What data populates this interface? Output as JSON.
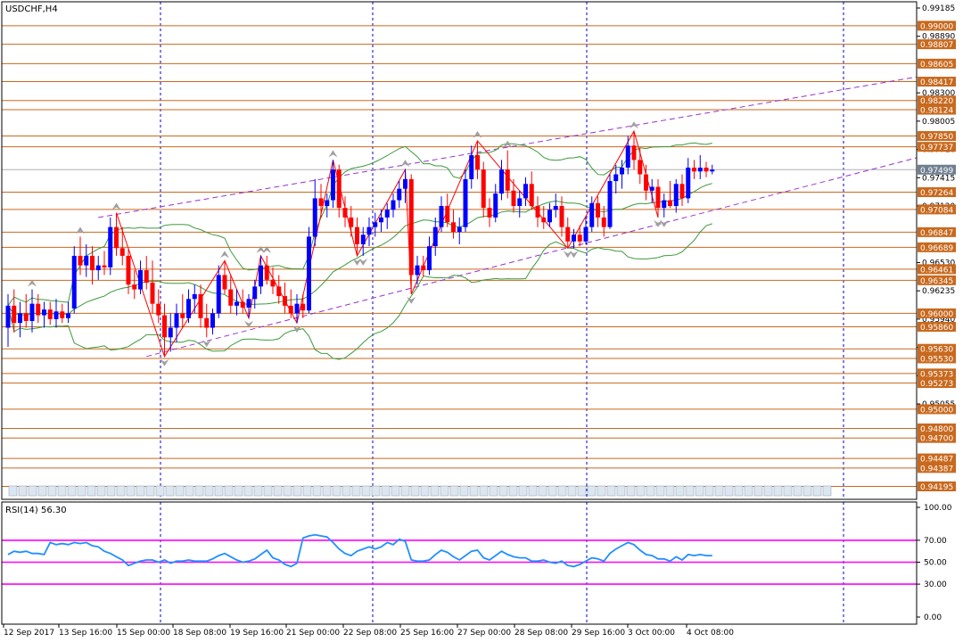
{
  "header": {
    "symbol_label": "USDCHF,H4"
  },
  "rsi": {
    "label": "RSI(14) 56.30",
    "ticks": [
      "100.00",
      "70.00",
      "50.00",
      "30.00",
      "0.00"
    ]
  },
  "colors": {
    "bull": "#0000ff",
    "bear": "#ff0000",
    "level": "#c8691e",
    "channel": "#9932cc",
    "bollinger": "#3c9a3c",
    "zigzag": "#ff0000",
    "rsi_line": "#1e90ff",
    "rsi_level": "#ff00ff",
    "grid": "#0000cd",
    "price_box": "#708090"
  },
  "chart_data": [
    {
      "type": "candlestick",
      "title": "USDCHF,H4",
      "ylim": [
        0.9406,
        0.9925
      ],
      "x_ticks": [
        "12 Sep 2017",
        "13 Sep 16:00",
        "15 Sep 00:00",
        "18 Sep 08:00",
        "19 Sep 16:00",
        "21 Sep 00:00",
        "22 Sep 08:00",
        "25 Sep 16:00",
        "27 Sep 00:00",
        "28 Sep 08:00",
        "29 Sep 16:00",
        "3 Oct 00:00",
        "4 Oct 08:00"
      ],
      "y_ticks": [
        "0.99185",
        "0.98890",
        "0.98300",
        "0.98005",
        "0.97710",
        "0.97415",
        "0.97120",
        "0.96530",
        "0.96235",
        "0.95940",
        "0.95645",
        "0.95350",
        "0.95055"
      ],
      "level_labels": [
        "0.99000",
        "0.98807",
        "0.98605",
        "0.98417",
        "0.98220",
        "0.98124",
        "0.97850",
        "0.97737",
        "0.97264",
        "0.97084",
        "0.96847",
        "0.96689",
        "0.96461",
        "0.96345",
        "0.96000",
        "0.95860",
        "0.95630",
        "0.95530",
        "0.95373",
        "0.95273",
        "0.95000",
        "0.94800",
        "0.94700",
        "0.94487",
        "0.94387",
        "0.94195"
      ],
      "current_price": "0.97499",
      "candles": [
        [
          0.9585,
          0.962,
          0.9565,
          0.9608
        ],
        [
          0.9608,
          0.9625,
          0.958,
          0.959
        ],
        [
          0.959,
          0.9612,
          0.9575,
          0.96
        ],
        [
          0.96,
          0.962,
          0.9585,
          0.9592
        ],
        [
          0.9592,
          0.9625,
          0.958,
          0.961
        ],
        [
          0.961,
          0.962,
          0.959,
          0.9598
        ],
        [
          0.9598,
          0.9612,
          0.9585,
          0.9604
        ],
        [
          0.9604,
          0.9612,
          0.9588,
          0.9594
        ],
        [
          0.9594,
          0.9615,
          0.9585,
          0.9602
        ],
        [
          0.9602,
          0.961,
          0.959,
          0.9595
        ],
        [
          0.9595,
          0.9612,
          0.959,
          0.96
        ],
        [
          0.9605,
          0.967,
          0.96,
          0.966
        ],
        [
          0.966,
          0.968,
          0.964,
          0.965
        ],
        [
          0.965,
          0.9672,
          0.9638,
          0.966
        ],
        [
          0.966,
          0.967,
          0.963,
          0.9645
        ],
        [
          0.9645,
          0.966,
          0.9635,
          0.965
        ],
        [
          0.965,
          0.9665,
          0.964,
          0.9648
        ],
        [
          0.9648,
          0.97,
          0.964,
          0.969
        ],
        [
          0.969,
          0.9705,
          0.966,
          0.9668
        ],
        [
          0.9668,
          0.969,
          0.965,
          0.966
        ],
        [
          0.966,
          0.9668,
          0.962,
          0.963
        ],
        [
          0.963,
          0.9645,
          0.9615,
          0.9625
        ],
        [
          0.9625,
          0.9655,
          0.962,
          0.9645
        ],
        [
          0.9645,
          0.966,
          0.9625,
          0.9632
        ],
        [
          0.9632,
          0.9655,
          0.96,
          0.961
        ],
        [
          0.961,
          0.9625,
          0.959,
          0.9598
        ],
        [
          0.9598,
          0.961,
          0.9555,
          0.9575
        ],
        [
          0.9575,
          0.96,
          0.956,
          0.9585
        ],
        [
          0.9585,
          0.961,
          0.957,
          0.96
        ],
        [
          0.96,
          0.962,
          0.9585,
          0.9595
        ],
        [
          0.9595,
          0.9625,
          0.959,
          0.9615
        ],
        [
          0.9615,
          0.963,
          0.96,
          0.962
        ],
        [
          0.962,
          0.963,
          0.9585,
          0.9595
        ],
        [
          0.9595,
          0.961,
          0.9575,
          0.9585
        ],
        [
          0.9585,
          0.9605,
          0.9578,
          0.96
        ],
        [
          0.96,
          0.965,
          0.9595,
          0.964
        ],
        [
          0.964,
          0.9655,
          0.962,
          0.9625
        ],
        [
          0.9625,
          0.964,
          0.96,
          0.9608
        ],
        [
          0.9608,
          0.9625,
          0.9598,
          0.9612
        ],
        [
          0.9612,
          0.9625,
          0.96,
          0.9606
        ],
        [
          0.9606,
          0.962,
          0.9595,
          0.9615
        ],
        [
          0.9615,
          0.9635,
          0.9605,
          0.9628
        ],
        [
          0.9628,
          0.966,
          0.962,
          0.965
        ],
        [
          0.965,
          0.966,
          0.963,
          0.9635
        ],
        [
          0.9635,
          0.9648,
          0.962,
          0.9628
        ],
        [
          0.9628,
          0.964,
          0.961,
          0.9618
        ],
        [
          0.9618,
          0.9632,
          0.96,
          0.9608
        ],
        [
          0.9608,
          0.9625,
          0.9595,
          0.96
        ],
        [
          0.96,
          0.962,
          0.959,
          0.961
        ],
        [
          0.961,
          0.962,
          0.9595,
          0.9603
        ],
        [
          0.9603,
          0.969,
          0.96,
          0.968
        ],
        [
          0.968,
          0.974,
          0.967,
          0.972
        ],
        [
          0.972,
          0.9735,
          0.97,
          0.9712
        ],
        [
          0.9712,
          0.9725,
          0.97,
          0.9718
        ],
        [
          0.9718,
          0.976,
          0.971,
          0.975
        ],
        [
          0.975,
          0.9755,
          0.97,
          0.971
        ],
        [
          0.971,
          0.9722,
          0.969,
          0.97
        ],
        [
          0.97,
          0.9712,
          0.968,
          0.969
        ],
        [
          0.969,
          0.97,
          0.966,
          0.9672
        ],
        [
          0.9672,
          0.969,
          0.966,
          0.9682
        ],
        [
          0.9682,
          0.97,
          0.967,
          0.969
        ],
        [
          0.969,
          0.9705,
          0.968,
          0.9695
        ],
        [
          0.9695,
          0.9708,
          0.9685,
          0.97
        ],
        [
          0.97,
          0.9715,
          0.9688,
          0.9708
        ],
        [
          0.9708,
          0.9725,
          0.97,
          0.9718
        ],
        [
          0.9718,
          0.9738,
          0.971,
          0.973
        ],
        [
          0.973,
          0.975,
          0.9715,
          0.974
        ],
        [
          0.974,
          0.9745,
          0.962,
          0.964
        ],
        [
          0.964,
          0.966,
          0.963,
          0.965
        ],
        [
          0.965,
          0.966,
          0.9638,
          0.9645
        ],
        [
          0.9645,
          0.968,
          0.964,
          0.967
        ],
        [
          0.967,
          0.97,
          0.966,
          0.969
        ],
        [
          0.969,
          0.9722,
          0.9685,
          0.9712
        ],
        [
          0.9712,
          0.9725,
          0.969,
          0.9695
        ],
        [
          0.9695,
          0.9708,
          0.9678,
          0.9685
        ],
        [
          0.9685,
          0.97,
          0.9672,
          0.969
        ],
        [
          0.969,
          0.975,
          0.9685,
          0.974
        ],
        [
          0.974,
          0.9775,
          0.973,
          0.9765
        ],
        [
          0.9765,
          0.978,
          0.974,
          0.975
        ],
        [
          0.975,
          0.9758,
          0.97,
          0.971
        ],
        [
          0.971,
          0.972,
          0.969,
          0.97
        ],
        [
          0.97,
          0.9735,
          0.9695,
          0.9725
        ],
        [
          0.9725,
          0.976,
          0.9718,
          0.975
        ],
        [
          0.975,
          0.977,
          0.972,
          0.9728
        ],
        [
          0.9728,
          0.974,
          0.9705,
          0.9712
        ],
        [
          0.9712,
          0.9728,
          0.97,
          0.972
        ],
        [
          0.972,
          0.9742,
          0.9712,
          0.9735
        ],
        [
          0.9735,
          0.9748,
          0.9708,
          0.9712
        ],
        [
          0.9712,
          0.9722,
          0.969,
          0.97
        ],
        [
          0.97,
          0.9712,
          0.9688,
          0.9695
        ],
        [
          0.9695,
          0.9715,
          0.969,
          0.9708
        ],
        [
          0.9708,
          0.9725,
          0.97,
          0.9712
        ],
        [
          0.9712,
          0.9722,
          0.968,
          0.969
        ],
        [
          0.969,
          0.97,
          0.9668,
          0.9675
        ],
        [
          0.9675,
          0.9688,
          0.9668,
          0.9682
        ],
        [
          0.9682,
          0.9692,
          0.967,
          0.9675
        ],
        [
          0.9675,
          0.97,
          0.9672,
          0.969
        ],
        [
          0.969,
          0.9722,
          0.9685,
          0.9715
        ],
        [
          0.9715,
          0.9722,
          0.969,
          0.97
        ],
        [
          0.97,
          0.9712,
          0.968,
          0.969
        ],
        [
          0.969,
          0.9745,
          0.9688,
          0.9738
        ],
        [
          0.9738,
          0.9755,
          0.9725,
          0.9745
        ],
        [
          0.9745,
          0.976,
          0.973,
          0.9752
        ],
        [
          0.9752,
          0.9785,
          0.9745,
          0.9775
        ],
        [
          0.9775,
          0.979,
          0.975,
          0.976
        ],
        [
          0.976,
          0.9772,
          0.9735,
          0.9745
        ],
        [
          0.9745,
          0.9755,
          0.9718,
          0.9728
        ],
        [
          0.9728,
          0.974,
          0.9715,
          0.9732
        ],
        [
          0.9732,
          0.974,
          0.97,
          0.971
        ],
        [
          0.971,
          0.9725,
          0.97,
          0.9718
        ],
        [
          0.9718,
          0.9738,
          0.971,
          0.9712
        ],
        [
          0.9712,
          0.974,
          0.9705,
          0.9735
        ],
        [
          0.9735,
          0.9745,
          0.9712,
          0.972
        ],
        [
          0.972,
          0.9762,
          0.9715,
          0.9752
        ],
        [
          0.9752,
          0.976,
          0.974,
          0.9748
        ],
        [
          0.9748,
          0.9765,
          0.974,
          0.9752
        ],
        [
          0.9752,
          0.9758,
          0.9742,
          0.9748
        ],
        [
          0.9748,
          0.9755,
          0.9745,
          0.975
        ]
      ]
    },
    {
      "type": "line",
      "title": "RSI(14) 56.30",
      "ylim": [
        0,
        100
      ],
      "levels": [
        70,
        50,
        30
      ],
      "values": [
        57,
        60,
        59,
        60,
        58,
        58,
        57,
        68,
        66,
        67,
        66,
        68,
        67,
        68,
        65,
        64,
        60,
        58,
        55,
        52,
        47,
        49,
        51,
        52,
        52,
        50,
        52,
        49,
        51,
        51,
        52,
        51,
        51,
        51,
        53,
        56,
        58,
        55,
        52,
        50,
        51,
        53,
        57,
        61,
        54,
        52,
        48,
        46,
        49,
        72,
        74,
        75,
        74,
        73,
        68,
        62,
        58,
        56,
        60,
        62,
        64,
        62,
        64,
        68,
        66,
        71,
        69,
        52,
        51,
        51,
        52,
        57,
        61,
        59,
        55,
        52,
        56,
        60,
        61,
        54,
        52,
        56,
        60,
        57,
        55,
        54,
        54,
        51,
        51,
        52,
        50,
        49,
        51,
        47,
        46,
        48,
        51,
        54,
        53,
        51,
        58,
        62,
        65,
        68,
        66,
        61,
        57,
        56,
        53,
        53,
        51,
        55,
        52,
        57,
        56,
        57,
        56,
        56
      ]
    }
  ]
}
